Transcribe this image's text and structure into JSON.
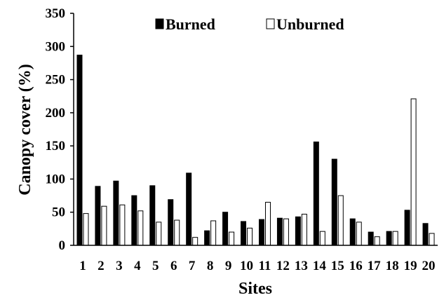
{
  "chart_data": {
    "type": "bar",
    "title": "",
    "xlabel": "Sites",
    "ylabel": "Canopy cover (%)",
    "ylim": [
      0,
      350
    ],
    "yticks": [
      "0",
      "50",
      "100",
      "150",
      "200",
      "250",
      "300",
      "350"
    ],
    "categories": [
      "1",
      "2",
      "3",
      "4",
      "5",
      "6",
      "7",
      "8",
      "9",
      "10",
      "11",
      "12",
      "13",
      "14",
      "15",
      "16",
      "17",
      "18",
      "19",
      "20"
    ],
    "series": [
      {
        "name": "Burned",
        "fill": "#000000",
        "values": [
          287,
          89,
          97,
          75,
          90,
          69,
          109,
          22,
          50,
          36,
          39,
          41,
          43,
          156,
          130,
          40,
          20,
          21,
          53,
          33
        ]
      },
      {
        "name": "Unburned",
        "fill": "#ffffff",
        "values": [
          48,
          59,
          61,
          52,
          35,
          38,
          12,
          37,
          20,
          26,
          65,
          40,
          47,
          21,
          75,
          35,
          13,
          21,
          221,
          18
        ]
      }
    ],
    "grid": false,
    "legend_position": "top-center"
  }
}
